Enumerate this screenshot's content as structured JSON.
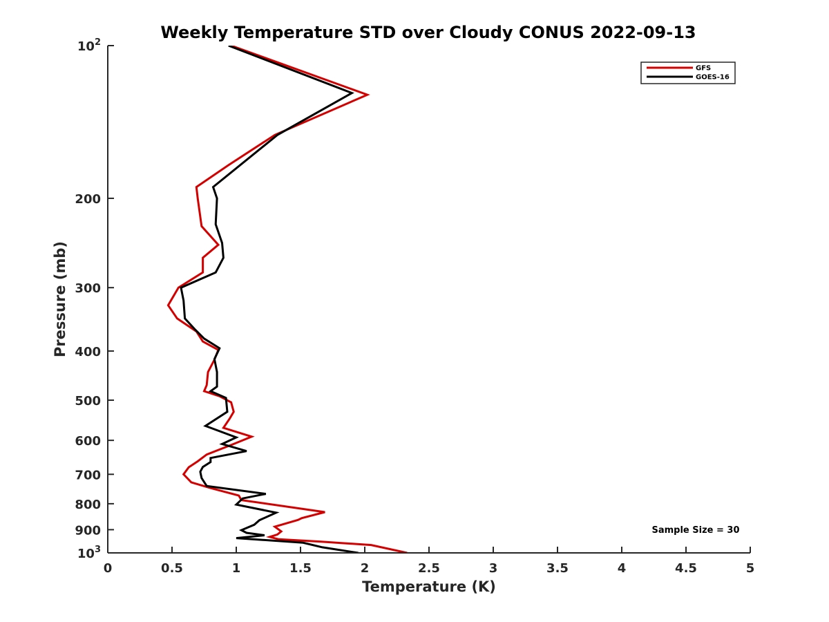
{
  "chart_data": {
    "type": "line",
    "title": "Weekly Temperature STD over Cloudy CONUS 2022-09-13",
    "xlabel": "Temperature (K)",
    "ylabel": "Pressure (mb)",
    "xlim": [
      0,
      5
    ],
    "ylim": [
      100,
      1000
    ],
    "y_scale": "log",
    "y_reversed": true,
    "x_ticks": [
      0,
      0.5,
      1,
      1.5,
      2,
      2.5,
      3,
      3.5,
      4,
      4.5,
      5
    ],
    "x_tick_labels": [
      "0",
      "0.5",
      "1",
      "1.5",
      "2",
      "2.5",
      "3",
      "3.5",
      "4",
      "4.5",
      "5"
    ],
    "y_ticks": [
      100,
      200,
      300,
      400,
      500,
      600,
      700,
      800,
      900,
      1000
    ],
    "y_tick_labels": [
      {
        "base": "10",
        "sup": "2"
      },
      {
        "base": "200",
        "sup": ""
      },
      {
        "base": "300",
        "sup": ""
      },
      {
        "base": "400",
        "sup": ""
      },
      {
        "base": "500",
        "sup": ""
      },
      {
        "base": "600",
        "sup": ""
      },
      {
        "base": "700",
        "sup": ""
      },
      {
        "base": "800",
        "sup": ""
      },
      {
        "base": "900",
        "sup": ""
      },
      {
        "base": "10",
        "sup": "3"
      }
    ],
    "legend_position": "top-right",
    "annotation": "Sample Size = 30",
    "series": [
      {
        "name": "GFS",
        "color": "#d40000",
        "points": [
          [
            0.96,
            100
          ],
          [
            2.02,
            125
          ],
          [
            1.3,
            150
          ],
          [
            0.94,
            172
          ],
          [
            0.69,
            190
          ],
          [
            0.7,
            200
          ],
          [
            0.73,
            227
          ],
          [
            0.86,
            247
          ],
          [
            0.74,
            262
          ],
          [
            0.74,
            280
          ],
          [
            0.55,
            300
          ],
          [
            0.47,
            325
          ],
          [
            0.54,
            345
          ],
          [
            0.69,
            366
          ],
          [
            0.74,
            383
          ],
          [
            0.86,
            398
          ],
          [
            0.83,
            416
          ],
          [
            0.78,
            440
          ],
          [
            0.77,
            467
          ],
          [
            0.75,
            480
          ],
          [
            0.87,
            491
          ],
          [
            0.96,
            505
          ],
          [
            0.98,
            527
          ],
          [
            0.95,
            543
          ],
          [
            0.9,
            567
          ],
          [
            1.12,
            590
          ],
          [
            0.98,
            610
          ],
          [
            0.77,
            640
          ],
          [
            0.7,
            660
          ],
          [
            0.63,
            678
          ],
          [
            0.59,
            700
          ],
          [
            0.65,
            726
          ],
          [
            0.8,
            745
          ],
          [
            1.02,
            771
          ],
          [
            1.04,
            787
          ],
          [
            1.69,
            831
          ],
          [
            1.51,
            854
          ],
          [
            1.48,
            861
          ],
          [
            1.3,
            888
          ],
          [
            1.35,
            907
          ],
          [
            1.32,
            920
          ],
          [
            1.26,
            930
          ],
          [
            1.33,
            940
          ],
          [
            1.65,
            950
          ],
          [
            2.05,
            965
          ],
          [
            2.33,
            1000
          ]
        ]
      },
      {
        "name": "GOES-16",
        "color": "#000000",
        "points": [
          [
            0.94,
            100
          ],
          [
            1.9,
            124
          ],
          [
            1.32,
            150
          ],
          [
            0.82,
            190
          ],
          [
            0.85,
            200
          ],
          [
            0.84,
            225
          ],
          [
            0.89,
            245
          ],
          [
            0.9,
            262
          ],
          [
            0.84,
            280
          ],
          [
            0.57,
            300
          ],
          [
            0.59,
            318
          ],
          [
            0.6,
            345
          ],
          [
            0.68,
            363
          ],
          [
            0.75,
            378
          ],
          [
            0.87,
            395
          ],
          [
            0.83,
            415
          ],
          [
            0.85,
            440
          ],
          [
            0.85,
            470
          ],
          [
            0.8,
            480
          ],
          [
            0.92,
            495
          ],
          [
            0.93,
            527
          ],
          [
            0.76,
            562
          ],
          [
            1.0,
            592
          ],
          [
            0.89,
            610
          ],
          [
            1.08,
            630
          ],
          [
            0.8,
            650
          ],
          [
            0.8,
            662
          ],
          [
            0.74,
            677
          ],
          [
            0.72,
            692
          ],
          [
            0.73,
            712
          ],
          [
            0.77,
            738
          ],
          [
            1.23,
            765
          ],
          [
            1.05,
            781
          ],
          [
            1.0,
            803
          ],
          [
            1.31,
            833
          ],
          [
            1.18,
            862
          ],
          [
            1.14,
            880
          ],
          [
            1.04,
            902
          ],
          [
            1.08,
            913
          ],
          [
            1.22,
            923
          ],
          [
            1.0,
            935
          ],
          [
            1.52,
            955
          ],
          [
            1.67,
            975
          ],
          [
            1.95,
            1000
          ]
        ]
      }
    ]
  }
}
